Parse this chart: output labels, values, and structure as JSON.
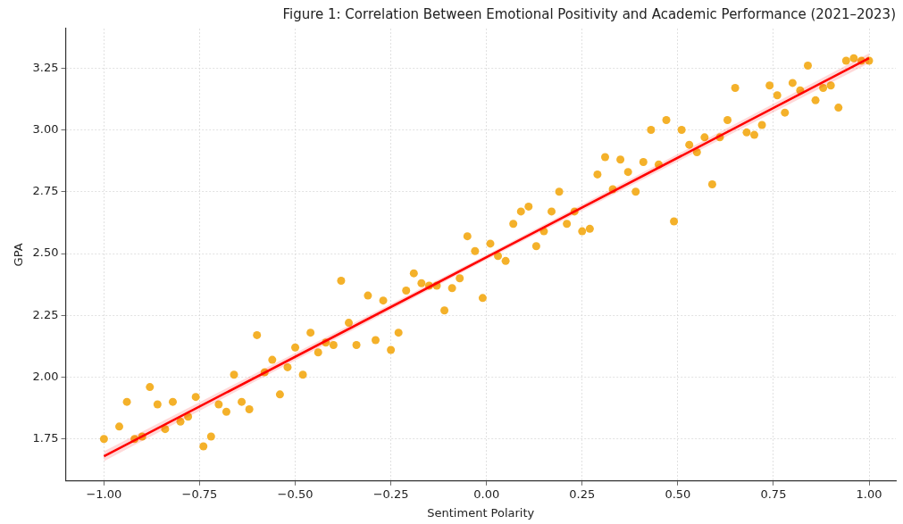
{
  "chart_data": {
    "type": "scatter",
    "title": "Figure 1: Correlation Between Emotional Positivity and Academic Performance (2021–2023)",
    "xlabel": "Sentiment Polarity",
    "ylabel": "GPA",
    "xlim": [
      -1.1,
      1.07
    ],
    "xticks": [
      {
        "value": -1,
        "label": "−1.00"
      },
      {
        "value": -0.75,
        "label": "−0.75"
      },
      {
        "value": -0.5,
        "label": "−0.50"
      },
      {
        "value": -0.25,
        "label": "−0.25"
      },
      {
        "value": 0,
        "label": "0.00"
      },
      {
        "value": 0.25,
        "label": "0.25"
      },
      {
        "value": 0.5,
        "label": "0.50"
      },
      {
        "value": 0.75,
        "label": "0.75"
      },
      {
        "value": 1,
        "label": "1.00"
      }
    ],
    "ylim": [
      1.58,
      3.41
    ],
    "yticks": [
      {
        "value": 1.75,
        "label": "1.75"
      },
      {
        "value": 2,
        "label": "2.00"
      },
      {
        "value": 2.25,
        "label": "2.25"
      },
      {
        "value": 2.5,
        "label": "2.50"
      },
      {
        "value": 2.75,
        "label": "2.75"
      },
      {
        "value": 3,
        "label": "3.00"
      },
      {
        "value": 3.25,
        "label": "3.25"
      }
    ],
    "grid": true,
    "legend": false,
    "series": [
      {
        "type": "scatter",
        "marker": "circle",
        "color": "#f4b12a",
        "x": [
          -1.0,
          -0.96,
          -0.94,
          -0.92,
          -0.9,
          -0.88,
          -0.86,
          -0.84,
          -0.82,
          -0.8,
          -0.78,
          -0.76,
          -0.74,
          -0.72,
          -0.7,
          -0.68,
          -0.66,
          -0.64,
          -0.62,
          -0.6,
          -0.58,
          -0.56,
          -0.54,
          -0.52,
          -0.5,
          -0.48,
          -0.46,
          -0.44,
          -0.42,
          -0.4,
          -0.38,
          -0.36,
          -0.34,
          -0.31,
          -0.29,
          -0.27,
          -0.25,
          -0.23,
          -0.21,
          -0.19,
          -0.17,
          -0.15,
          -0.13,
          -0.11,
          -0.09,
          -0.07,
          -0.05,
          -0.03,
          -0.01,
          0.01,
          0.03,
          0.05,
          0.07,
          0.09,
          0.11,
          0.13,
          0.15,
          0.17,
          0.19,
          0.21,
          0.23,
          0.25,
          0.27,
          0.29,
          0.31,
          0.33,
          0.35,
          0.37,
          0.39,
          0.41,
          0.43,
          0.45,
          0.47,
          0.49,
          0.51,
          0.53,
          0.55,
          0.57,
          0.59,
          0.61,
          0.63,
          0.65,
          0.68,
          0.7,
          0.72,
          0.74,
          0.76,
          0.78,
          0.8,
          0.82,
          0.84,
          0.86,
          0.88,
          0.9,
          0.92,
          0.94,
          0.96,
          0.98,
          1.0
        ],
        "values": [
          1.75,
          1.8,
          1.9,
          1.75,
          1.76,
          1.96,
          1.89,
          1.79,
          1.9,
          1.82,
          1.84,
          1.92,
          1.72,
          1.76,
          1.89,
          1.86,
          2.01,
          1.9,
          1.87,
          2.17,
          2.02,
          2.07,
          1.93,
          2.04,
          2.12,
          2.01,
          2.18,
          2.1,
          2.14,
          2.13,
          2.39,
          2.22,
          2.13,
          2.33,
          2.15,
          2.31,
          2.11,
          2.18,
          2.35,
          2.42,
          2.38,
          2.37,
          2.37,
          2.27,
          2.36,
          2.4,
          2.57,
          2.51,
          2.32,
          2.54,
          2.49,
          2.47,
          2.62,
          2.67,
          2.69,
          2.53,
          2.59,
          2.67,
          2.75,
          2.62,
          2.67,
          2.59,
          2.6,
          2.82,
          2.89,
          2.76,
          2.88,
          2.83,
          2.75,
          2.87,
          3.0,
          2.86,
          3.04,
          2.63,
          3.0,
          2.94,
          2.91,
          2.97,
          2.78,
          2.97,
          3.04,
          3.17,
          2.99,
          2.98,
          3.02,
          3.18,
          3.14,
          3.07,
          3.19,
          3.16,
          3.26,
          3.12,
          3.17,
          3.18,
          3.09,
          3.28,
          3.29,
          3.28,
          3.28
        ]
      },
      {
        "type": "line",
        "marker": "none",
        "color": "#ff0000",
        "x": [
          -1,
          0,
          1
        ],
        "values": [
          1.68,
          2.485,
          3.29
        ],
        "lower": [
          1.66,
          2.475,
          3.27
        ],
        "upper": [
          1.7,
          2.495,
          3.31
        ]
      }
    ]
  }
}
